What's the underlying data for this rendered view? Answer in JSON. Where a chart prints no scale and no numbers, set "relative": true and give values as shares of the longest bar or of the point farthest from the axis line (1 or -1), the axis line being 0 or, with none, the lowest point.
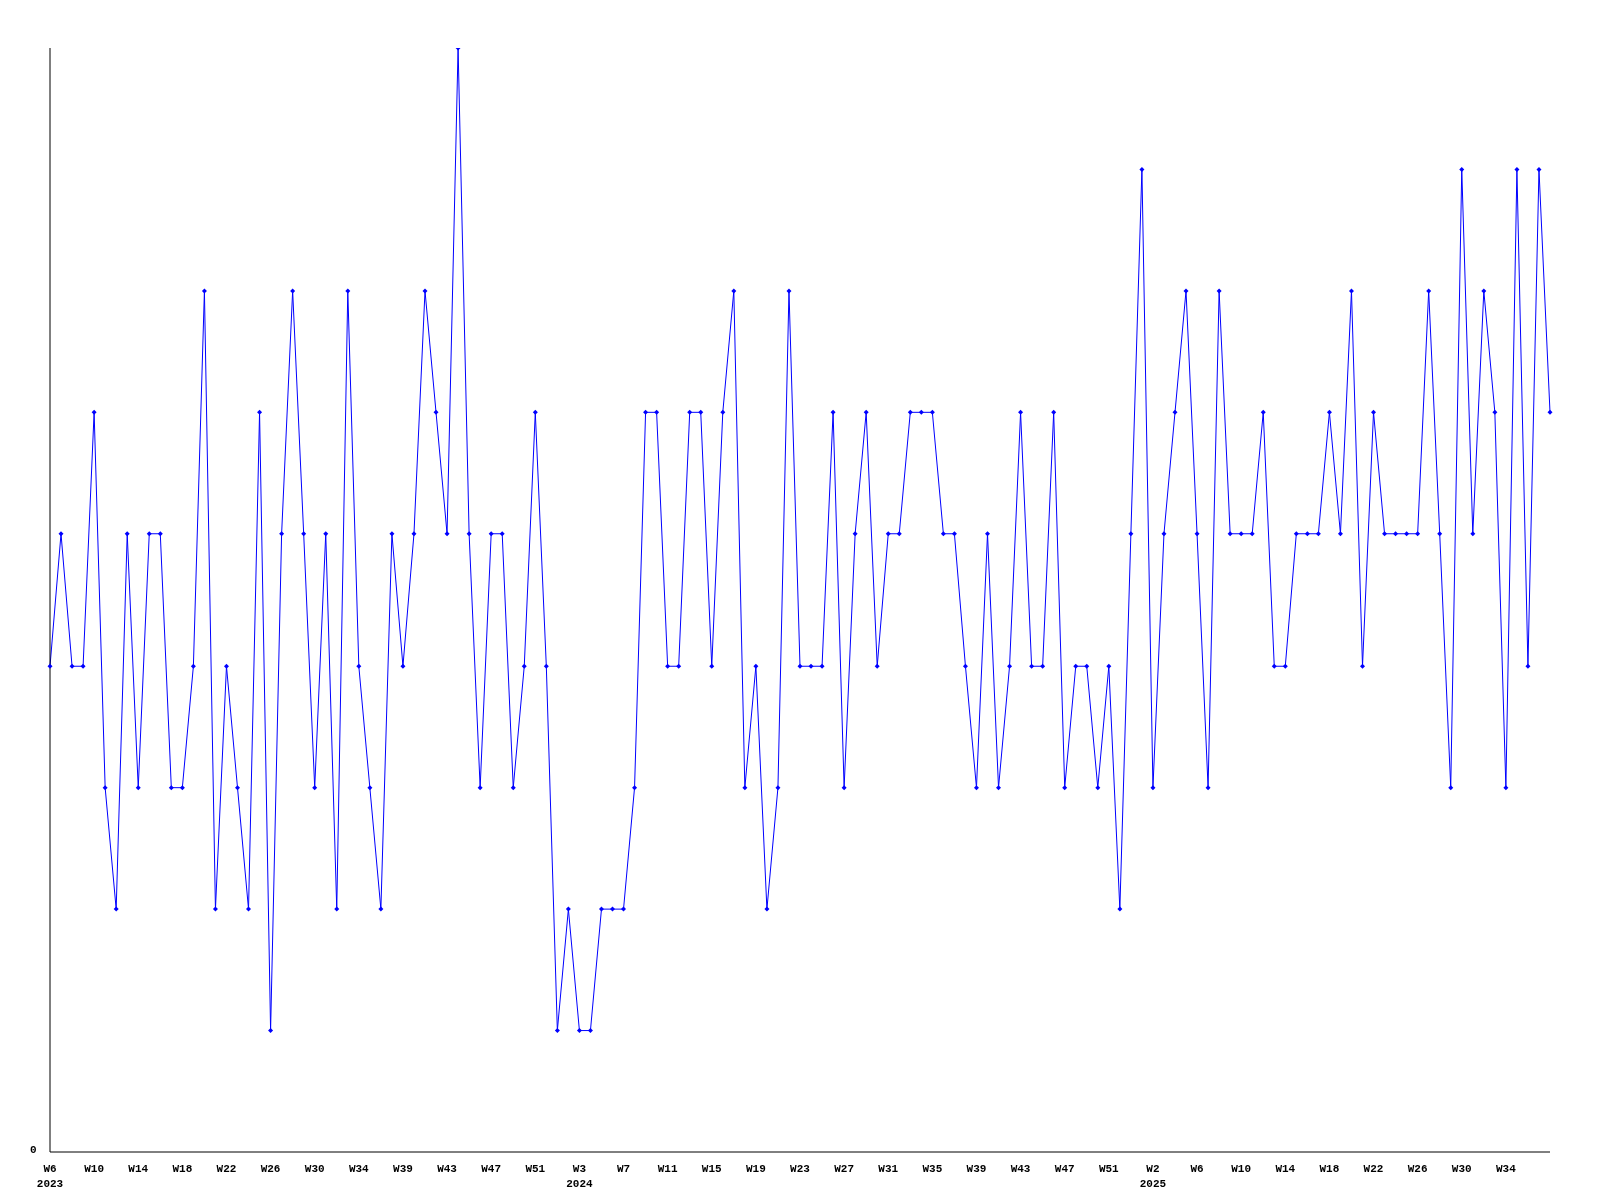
{
  "chart_data": {
    "type": "line",
    "relative": true,
    "marker": "diamond",
    "annotations": [
      "0"
    ],
    "categories": [
      "W6\n2023",
      null,
      null,
      null,
      "W10",
      null,
      null,
      null,
      "W14",
      null,
      null,
      null,
      "W18",
      null,
      null,
      null,
      "W22",
      null,
      null,
      null,
      "W26",
      null,
      null,
      null,
      "W30",
      null,
      null,
      null,
      "W34",
      null,
      null,
      null,
      "W39",
      null,
      null,
      null,
      "W43",
      null,
      null,
      null,
      "W47",
      null,
      null,
      null,
      "W51",
      null,
      null,
      null,
      "W3\n2024",
      null,
      null,
      null,
      "W7",
      null,
      null,
      null,
      "W11",
      null,
      null,
      null,
      "W15",
      null,
      null,
      null,
      "W19",
      null,
      null,
      null,
      "W23",
      null,
      null,
      null,
      "W27",
      null,
      null,
      null,
      "W31",
      null,
      null,
      null,
      "W35",
      null,
      null,
      null,
      "W39",
      null,
      null,
      null,
      "W43",
      null,
      null,
      null,
      "W47",
      null,
      null,
      null,
      "W51",
      null,
      null,
      null,
      "W2\n2025",
      null,
      null,
      null,
      "W6",
      null,
      null,
      null,
      "W10",
      null,
      null,
      null,
      "W14",
      null,
      null,
      null,
      "W18",
      null,
      null,
      null,
      "W22",
      null,
      null,
      null,
      "W26",
      null,
      null,
      null,
      "W30",
      null,
      null,
      null,
      "W34",
      null,
      null,
      null,
      null
    ],
    "series": [
      {
        "color": "#0000ff",
        "values": [
          0.44,
          0.56,
          0.44,
          0.44,
          0.67,
          0.33,
          0.22,
          0.56,
          0.33,
          0.56,
          0.56,
          0.33,
          0.33,
          0.44,
          0.78,
          0.22,
          0.44,
          0.33,
          0.22,
          0.67,
          0.11,
          0.56,
          0.78,
          0.56,
          0.33,
          0.56,
          0.22,
          0.78,
          0.44,
          0.33,
          0.22,
          0.56,
          0.44,
          0.56,
          0.78,
          0.67,
          0.56,
          1,
          0.56,
          0.33,
          0.56,
          0.56,
          0.33,
          0.44,
          0.67,
          0.44,
          0.11,
          0.22,
          0.11,
          0.11,
          0.22,
          0.22,
          0.22,
          0.33,
          0.67,
          0.67,
          0.44,
          0.44,
          0.67,
          0.67,
          0.44,
          0.67,
          0.78,
          0.33,
          0.44,
          0.22,
          0.33,
          0.78,
          0.44,
          0.44,
          0.44,
          0.67,
          0.33,
          0.56,
          0.67,
          0.44,
          0.56,
          0.56,
          0.67,
          0.67,
          0.67,
          0.56,
          0.56,
          0.44,
          0.33,
          0.56,
          0.33,
          0.44,
          0.67,
          0.44,
          0.44,
          0.67,
          0.33,
          0.44,
          0.44,
          0.33,
          0.44,
          0.22,
          0.56,
          0.89,
          0.33,
          0.56,
          0.67,
          0.78,
          0.56,
          0.33,
          0.78,
          0.56,
          0.56,
          0.56,
          0.67,
          0.44,
          0.44,
          0.56,
          0.56,
          0.56,
          0.67,
          0.56,
          0.78,
          0.44,
          0.67,
          0.56,
          0.56,
          0.56,
          0.56,
          0.78,
          0.56,
          0.33,
          0.89,
          0.56,
          0.78,
          0.67,
          0.33,
          0.89,
          0.44,
          0.89,
          0.67
        ]
      }
    ]
  }
}
